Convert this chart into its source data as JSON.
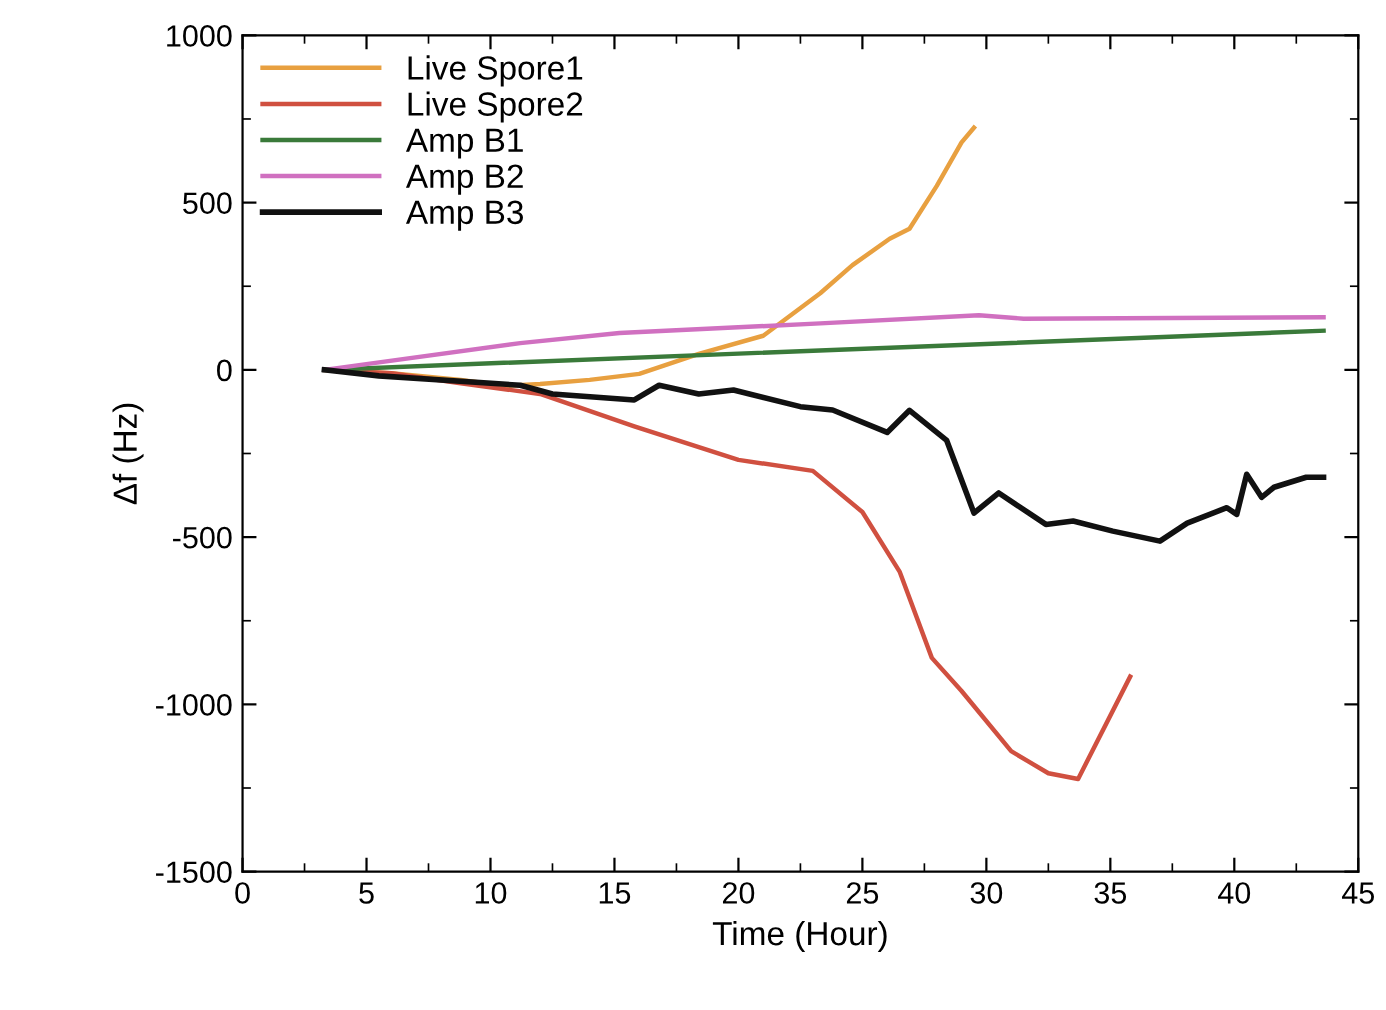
{
  "chart_data": {
    "type": "line",
    "xlabel": "Time (Hour)",
    "ylabel": "Δf (Hz)",
    "xlim": [
      0,
      45
    ],
    "ylim": [
      -1500,
      1000
    ],
    "xticks": [
      0,
      5,
      10,
      15,
      20,
      25,
      30,
      35,
      40,
      45
    ],
    "yticks": [
      -1500,
      -1000,
      -500,
      0,
      500,
      1000
    ],
    "legend": "top left",
    "grid": false,
    "marker": "none",
    "line_style": "solid",
    "series": [
      {
        "name": "Live Spore1",
        "color": "#e8a040",
        "x": [
          3.3,
          6,
          8.8,
          10.6,
          12,
          14,
          16,
          18.4,
          21,
          23.3,
          24.6,
          26.1,
          26.9,
          28,
          29,
          29.5
        ],
        "values": [
          0,
          -10,
          -30,
          -48,
          -42,
          -30,
          -12,
          48,
          102,
          229,
          313,
          392,
          422,
          550,
          680,
          724
        ]
      },
      {
        "name": "Live Spore2",
        "color": "#d05040",
        "x": [
          3.3,
          6,
          8.8,
          12,
          15.8,
          20,
          23,
          25,
          26.5,
          27.8,
          29,
          31,
          32.5,
          33.7,
          35.8
        ],
        "values": [
          0,
          -10,
          -40,
          -72,
          -169,
          -269,
          -302,
          -425,
          -603,
          -861,
          -960,
          -1140,
          -1206,
          -1223,
          -917
        ]
      },
      {
        "name": "Amp B1",
        "color": "#3a7a3a",
        "x": [
          3.3,
          43.6
        ],
        "values": [
          0,
          117
        ]
      },
      {
        "name": "Amp B2",
        "color": "#d070c0",
        "x": [
          3.3,
          11.2,
          15.2,
          23.3,
          29.7,
          31.5,
          43.6
        ],
        "values": [
          0,
          80,
          110,
          139,
          163,
          153,
          157
        ]
      },
      {
        "name": "Amp B3",
        "color": "#111111",
        "x": [
          3.3,
          5.5,
          11.2,
          12.5,
          15.8,
          16.8,
          18.4,
          19.8,
          22.5,
          23.8,
          26,
          26.9,
          28.4,
          29.5,
          30.5,
          32.4,
          33.5,
          35.1,
          37,
          38.1,
          39.7,
          40.1,
          40.5,
          41.1,
          41.6,
          42.9,
          43.6
        ],
        "values": [
          0,
          -18,
          -46,
          -72,
          -90,
          -46,
          -72,
          -60,
          -110,
          -120,
          -187,
          -121,
          -211,
          -428,
          -368,
          -462,
          -452,
          -482,
          -512,
          -458,
          -412,
          -432,
          -312,
          -381,
          -351,
          -321,
          -321
        ]
      }
    ]
  }
}
